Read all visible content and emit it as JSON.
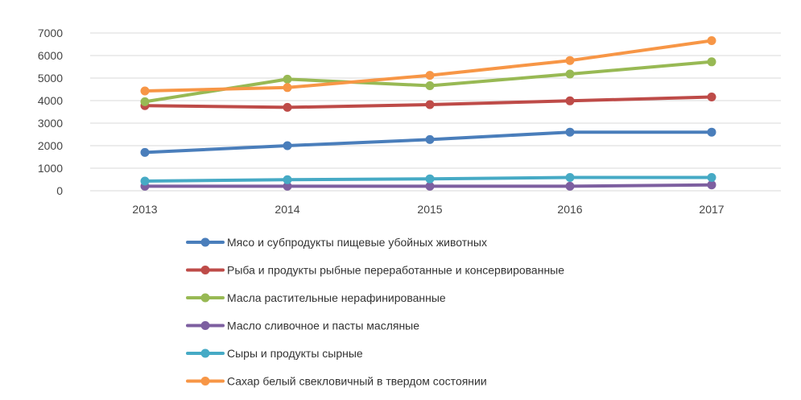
{
  "chart_data": {
    "type": "line",
    "title": "",
    "xlabel": "",
    "ylabel": "",
    "x": [
      "2013",
      "2014",
      "2015",
      "2016",
      "2017"
    ],
    "ylim": [
      0,
      7000
    ],
    "yticks": [
      "0",
      "1000",
      "2000",
      "3000",
      "4000",
      "5000",
      "6000",
      "7000"
    ],
    "grid": "horizontal",
    "legend_position": "bottom",
    "series": [
      {
        "name": "Мясо и субпродукты пищевые убойных животных",
        "values": [
          1700,
          2000,
          2270,
          2600,
          2600
        ],
        "color": "#4a7ebb"
      },
      {
        "name": "Рыба и продукты рыбные переработанные и консервированные",
        "values": [
          3780,
          3700,
          3820,
          3990,
          4160
        ],
        "color": "#be4b48"
      },
      {
        "name": "Масла растительные нерафинированные",
        "values": [
          3950,
          4950,
          4660,
          5180,
          5720
        ],
        "color": "#98b954"
      },
      {
        "name": "Масло сливочное и пасты масляные",
        "values": [
          200,
          200,
          200,
          200,
          260
        ],
        "color": "#7d5fa0"
      },
      {
        "name": "Сыры и продукты сырные",
        "values": [
          430,
          490,
          530,
          590,
          590
        ],
        "color": "#46aac5"
      },
      {
        "name": "Сахар белый свекловичный в твердом состоянии",
        "values": [
          4430,
          4580,
          5120,
          5780,
          6660
        ],
        "color": "#f79646"
      }
    ]
  }
}
